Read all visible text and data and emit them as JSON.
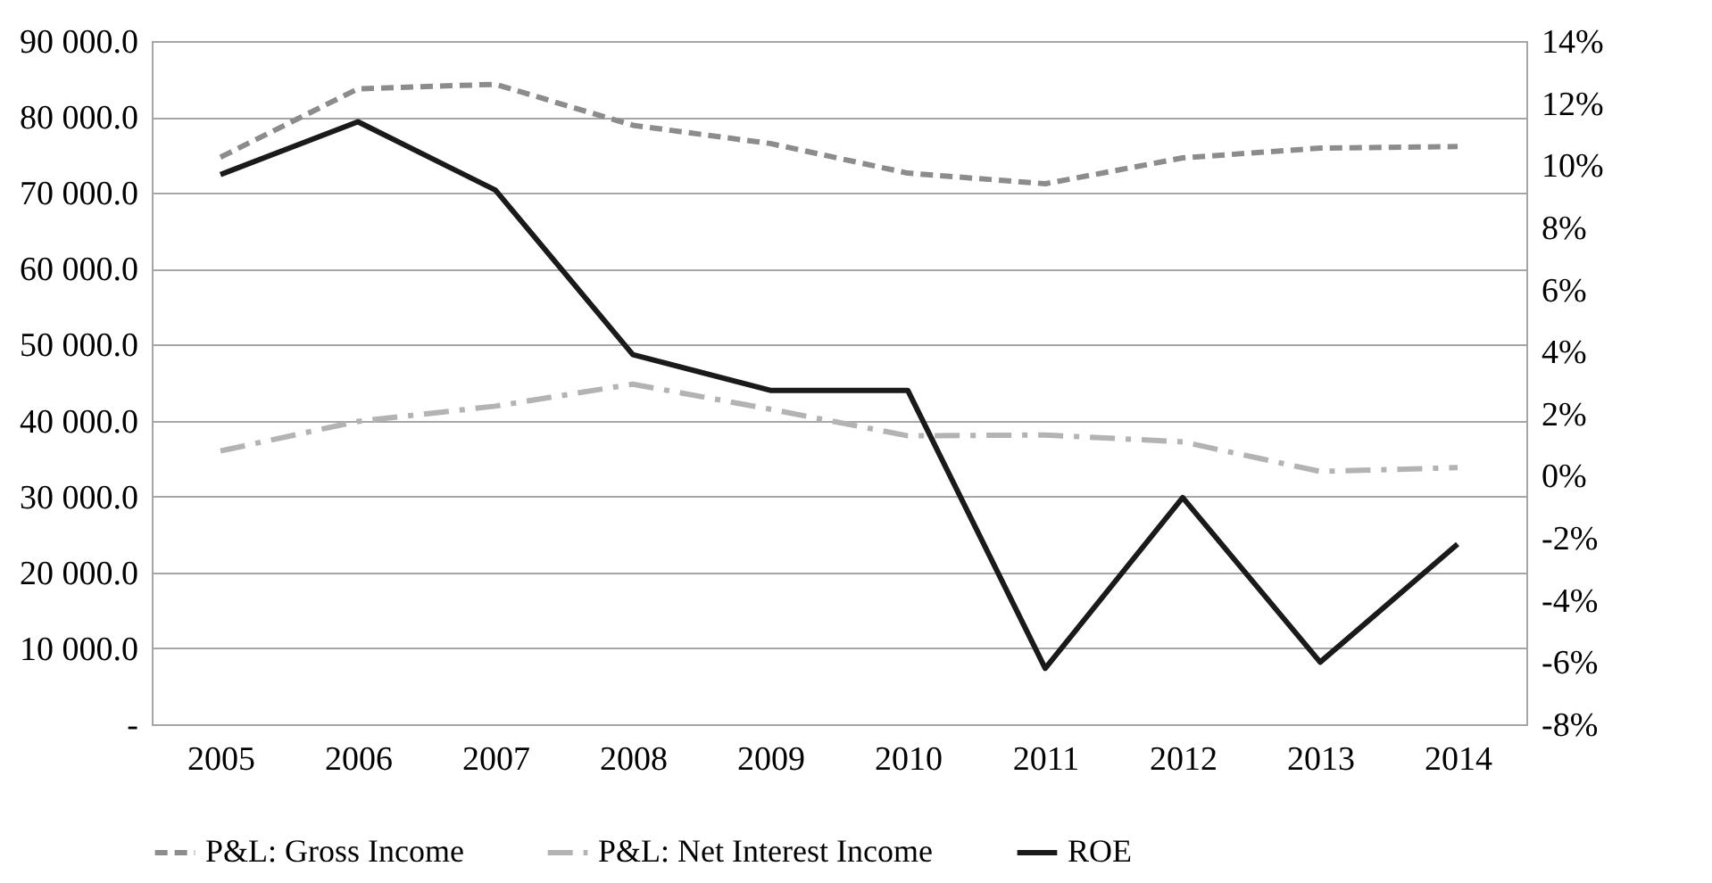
{
  "chart_data": {
    "type": "line",
    "categories": [
      "2005",
      "2006",
      "2007",
      "2008",
      "2009",
      "2010",
      "2011",
      "2012",
      "2013",
      "2014"
    ],
    "series": [
      {
        "name": "P&L: Gross Income",
        "color": "#8c8c8c",
        "line_style": "dashed",
        "values": [
          74700,
          83700,
          84300,
          78900,
          76500,
          72600,
          71200,
          74600,
          75900,
          76100
        ]
      },
      {
        "name": "P&L: Net Interest Income",
        "color": "#b3b3b3",
        "line_style": "dashdot",
        "values": [
          36000,
          39900,
          41900,
          44800,
          41500,
          38000,
          38100,
          37200,
          33300,
          33800
        ]
      },
      {
        "name": "ROE",
        "color": "#1a1a1a",
        "line_style": "solid",
        "axis": "y2",
        "values": [
          9.7,
          11.4,
          9.2,
          3.9,
          2.75,
          2.75,
          -6.2,
          -0.7,
          -6.0,
          -2.2
        ]
      }
    ],
    "ylim": [
      0,
      90000
    ],
    "yticks": [
      {
        "value": 0,
        "label": "-"
      },
      {
        "value": 10000,
        "label": "10 000.0"
      },
      {
        "value": 20000,
        "label": "20 000.0"
      },
      {
        "value": 30000,
        "label": "30 000.0"
      },
      {
        "value": 40000,
        "label": "40 000.0"
      },
      {
        "value": 50000,
        "label": "50 000.0"
      },
      {
        "value": 60000,
        "label": "60 000.0"
      },
      {
        "value": 70000,
        "label": "70 000.0"
      },
      {
        "value": 80000,
        "label": "80 000.0"
      },
      {
        "value": 90000,
        "label": "90 000.0"
      }
    ],
    "y2lim": [
      -8,
      14
    ],
    "y2ticks": [
      {
        "value": -8,
        "label": "-8%"
      },
      {
        "value": -6,
        "label": "-6%"
      },
      {
        "value": -4,
        "label": "-4%"
      },
      {
        "value": -2,
        "label": "-2%"
      },
      {
        "value": 0,
        "label": "0%"
      },
      {
        "value": 2,
        "label": "2%"
      },
      {
        "value": 4,
        "label": "4%"
      },
      {
        "value": 6,
        "label": "6%"
      },
      {
        "value": 8,
        "label": "8%"
      },
      {
        "value": 10,
        "label": "10%"
      },
      {
        "value": 12,
        "label": "12%"
      },
      {
        "value": 14,
        "label": "14%"
      }
    ],
    "grid": "y",
    "legend": "bottom"
  }
}
